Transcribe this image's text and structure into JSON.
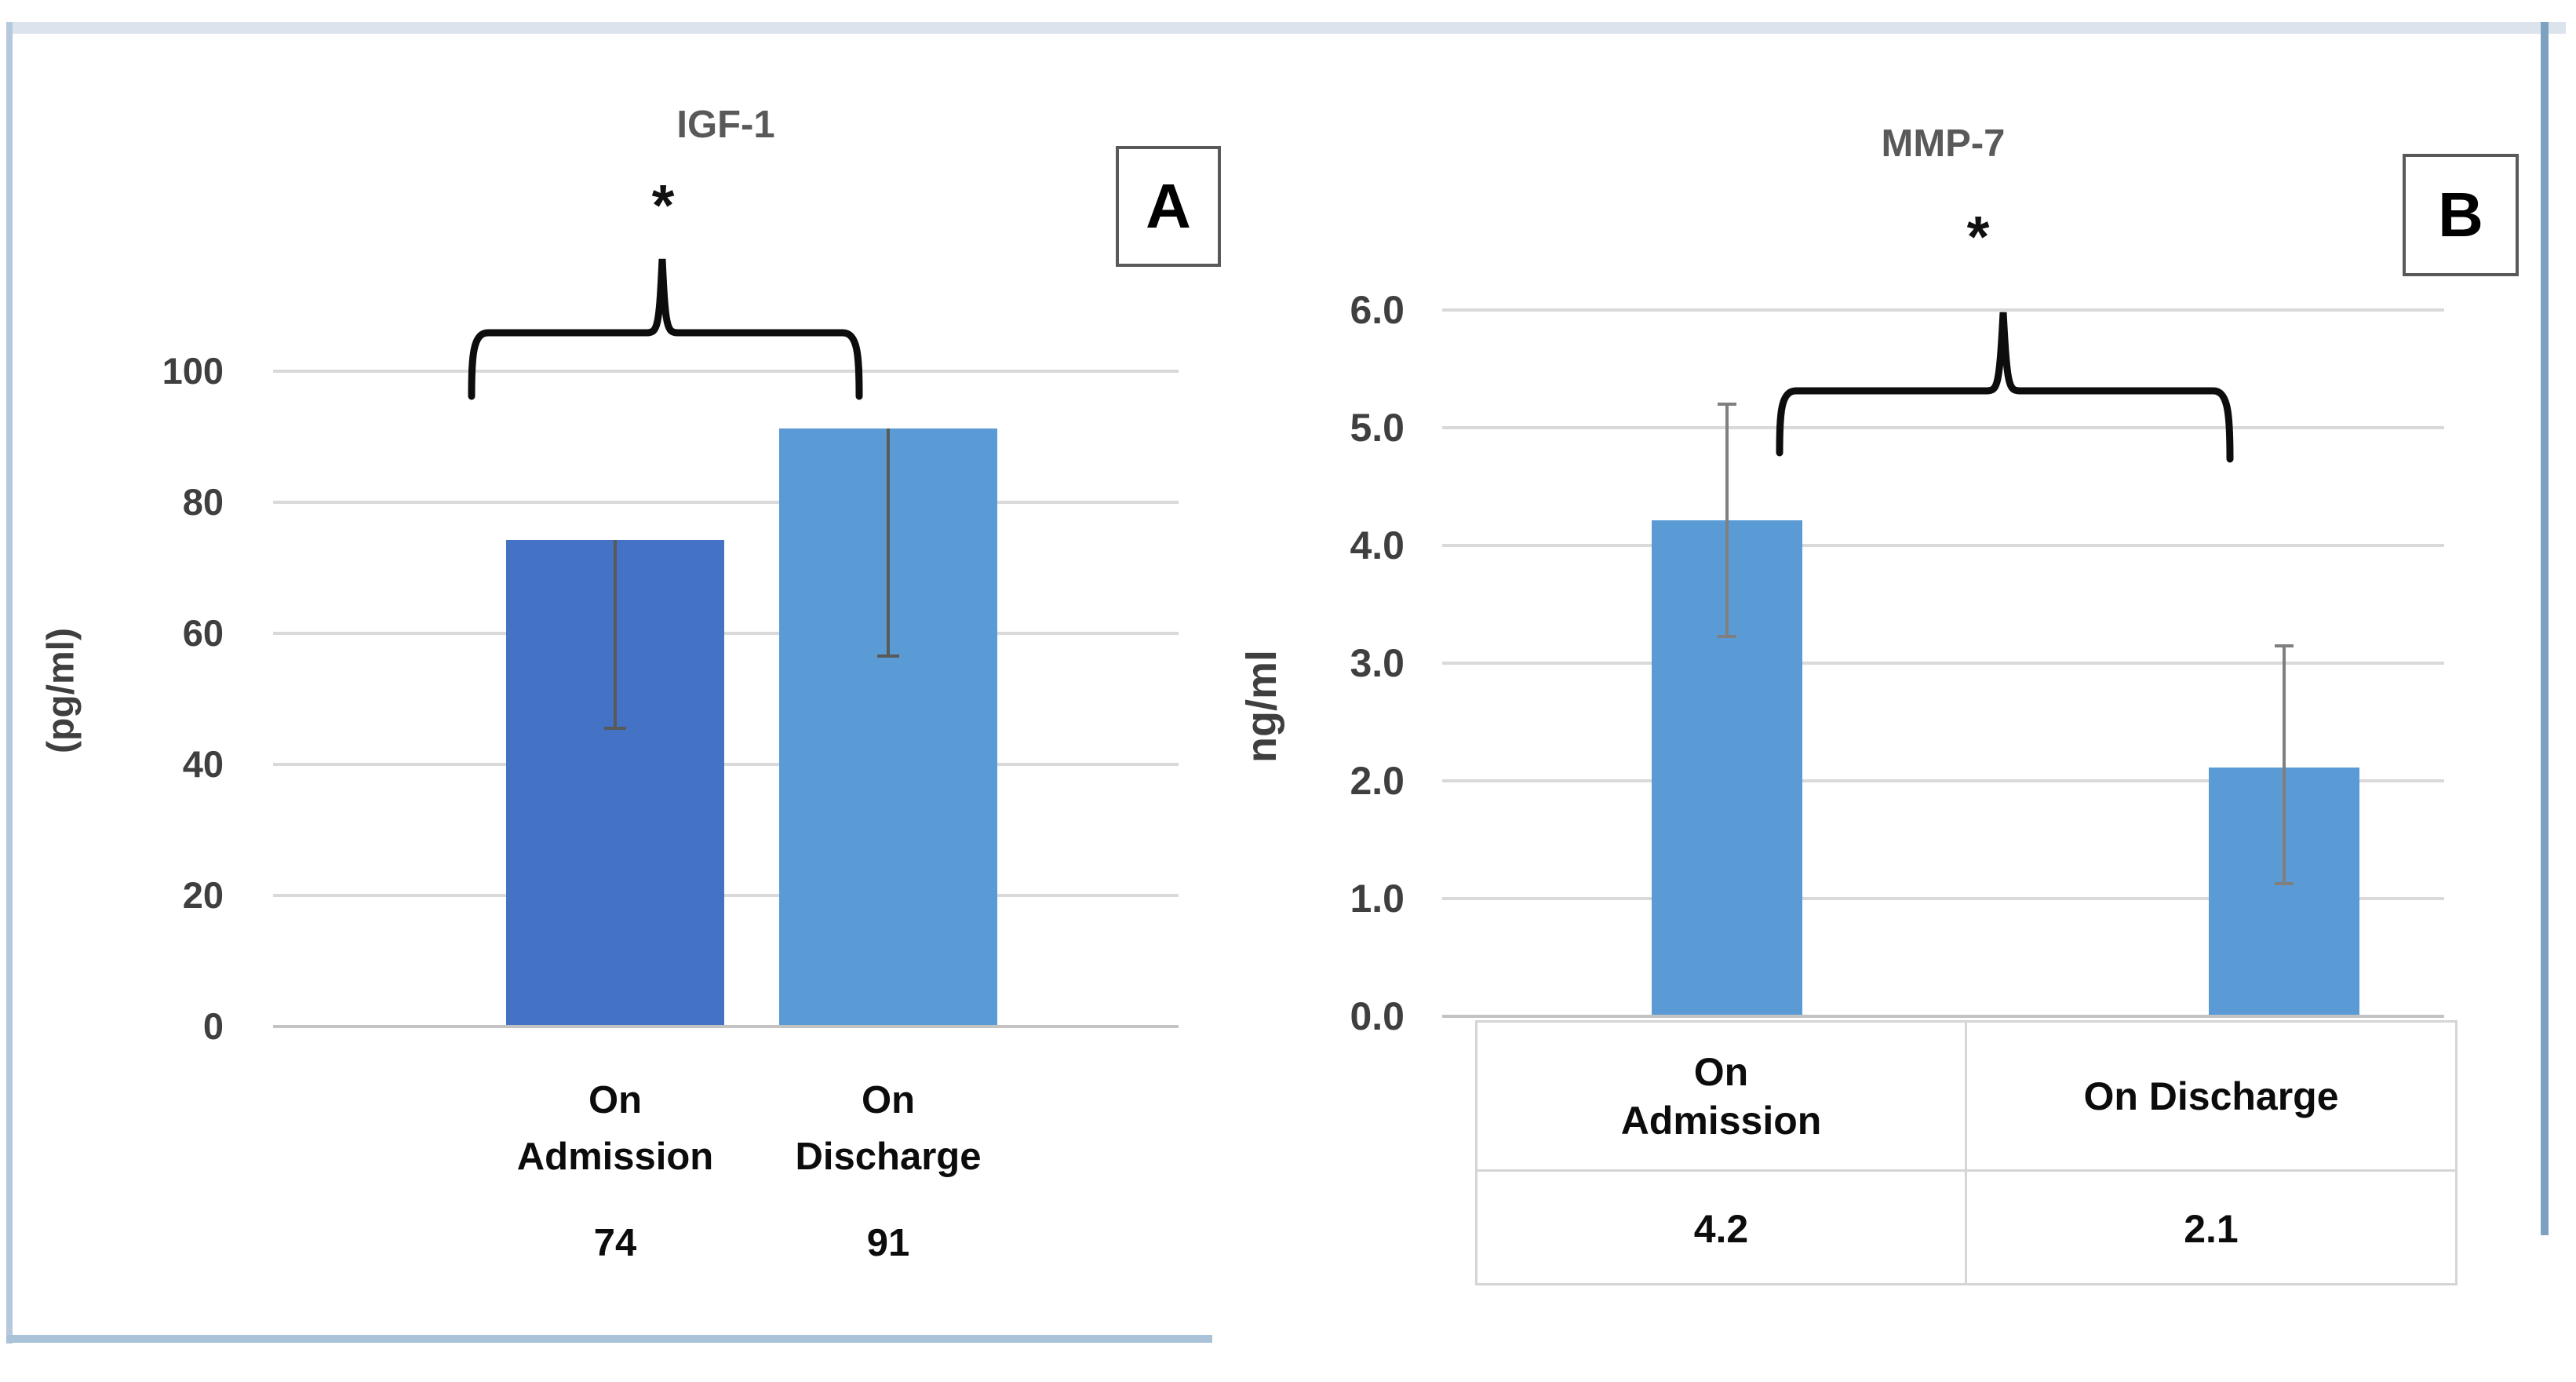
{
  "panel_a": {
    "title": "IGF-1",
    "panel_label": "A",
    "significance_marker": "*",
    "ylabel": "(pg/ml)",
    "yticks": [
      "100",
      "80",
      "60",
      "40",
      "20",
      "0"
    ],
    "categories": [
      {
        "line1": "On",
        "line2": "Admission",
        "value": "74"
      },
      {
        "line1": "On",
        "line2": "Discharge",
        "value": "91"
      }
    ]
  },
  "panel_b": {
    "title": "MMP-7",
    "panel_label": "B",
    "significance_marker": "*",
    "ylabel": "ng/ml",
    "yticks": [
      "6.0",
      "5.0",
      "4.0",
      "3.0",
      "2.0",
      "1.0",
      "0.0"
    ],
    "table": {
      "header1_line1": "On",
      "header1_line2": "Admission",
      "header2": "On Discharge",
      "values": [
        "4.2",
        "2.1"
      ]
    }
  },
  "chart_data": [
    {
      "type": "bar",
      "title": "IGF-1",
      "ylabel": "(pg/ml)",
      "categories": [
        "On Admission",
        "On Discharge"
      ],
      "values": [
        74,
        91
      ],
      "data_labels": [
        "74",
        "91"
      ],
      "error_bars": {
        "upper": [
          0,
          0
        ],
        "lower": [
          29,
          35
        ]
      },
      "ylim": [
        0,
        100
      ],
      "yticks": [
        0,
        20,
        40,
        60,
        80,
        100
      ],
      "grid": true,
      "legend": "none",
      "significance": "* bracket spanning On Admission vs On Discharge",
      "bar_colors": [
        "#4472c4",
        "#5b9bd5"
      ]
    },
    {
      "type": "bar",
      "title": "MMP-7",
      "ylabel": "ng/ml",
      "categories": [
        "On Admission",
        "On Discharge"
      ],
      "values": [
        4.2,
        2.1
      ],
      "data_labels": [
        "4.2",
        "2.1"
      ],
      "error_bars": {
        "upper": [
          1.0,
          1.05
        ],
        "lower": [
          1.0,
          1.0
        ]
      },
      "ylim": [
        0,
        6
      ],
      "yticks": [
        0.0,
        1.0,
        2.0,
        3.0,
        4.0,
        5.0,
        6.0
      ],
      "grid": true,
      "legend": "none",
      "significance": "* bracket spanning On Admission vs On Discharge",
      "bar_colors": [
        "#5b9bd5",
        "#5b9bd5"
      ]
    }
  ]
}
